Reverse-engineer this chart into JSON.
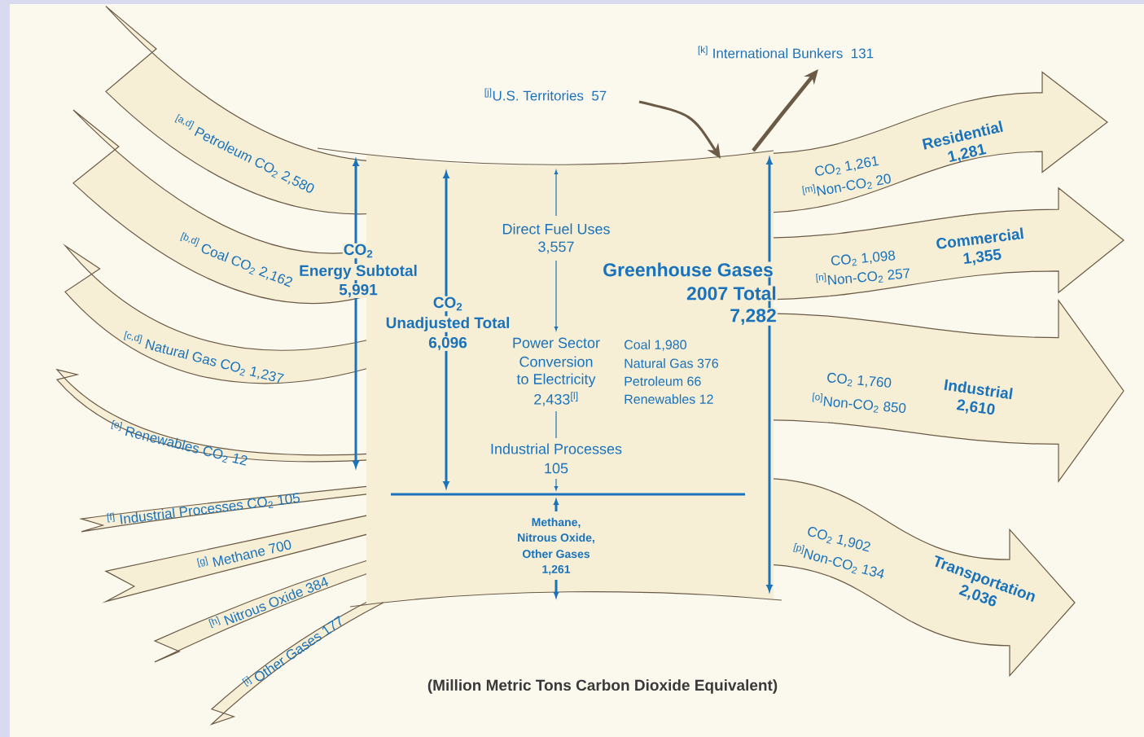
{
  "chart_data": {
    "type": "other",
    "subtitle": "(Million Metric Tons Carbon Dioxide Equivalent)",
    "categories": [
      "$^{[a,d]}$ Petroleum CO$_{2}$",
      "$^{[b,d]}$ Coal CO$_{2}$",
      "$^{[c,d]}$ Natural Gas CO$_{2}$",
      "$^{[e]}$ Renewables CO$_{2}$",
      "$^{[f]}$ Industrial Processes CO$_{2}$",
      "$^{[g]}$ Methane",
      "$^{[h]}$ Nitrous Oxide",
      "$^{[i]}$ Other Gases",
      "Residential",
      "Commercial",
      "Industrial",
      "Transportation",
      "$^{[j]}$U.S. Territories",
      "$^{[k]}$ International Bunkers"
    ],
    "values": [
      2580,
      2162,
      1237,
      12,
      105,
      700,
      384,
      177,
      1281,
      1355,
      2610,
      2036,
      57,
      131
    ],
    "value_labels": [
      "2,580",
      "2,162",
      "1,237",
      "12",
      "105",
      "700",
      "384",
      "177",
      "1,281",
      "1,355",
      "2,610",
      "2,036",
      "57",
      "131"
    ],
    "annotations": [
      "CO$_{2}$",
      "Energy Subtotal",
      "5,991",
      "CO$_{2}$",
      "Unadjusted Total",
      "6,096",
      "Direct Fuel Uses",
      "3,557",
      "Power Sector",
      "Conversion",
      "to Electricity",
      "2,433$^{[l]}$",
      "Coal  1,980",
      "Natural Gas  376",
      "Petroleum  66",
      "Renewables  12",
      "Industrial Processes",
      "105",
      "Methane,",
      "Nitrous Oxide,",
      "Other Gases",
      "1,261",
      "Greenhouse Gases",
      "2007 Total",
      "7,282",
      "CO$_{2}$ 1,261",
      "$^{[m]}$Non-CO$_{2}$ 20",
      "CO$_{2}$ 1,098",
      "$^{[n]}$Non-CO$_{2}$ 257",
      "CO$_{2}$ 1,760",
      "$^{[o]}$Non-CO$_{2}$ 850",
      "CO$_{2}$ 1,902",
      "$^{[p]}$Non-CO$_{2}$ 134"
    ]
  }
}
